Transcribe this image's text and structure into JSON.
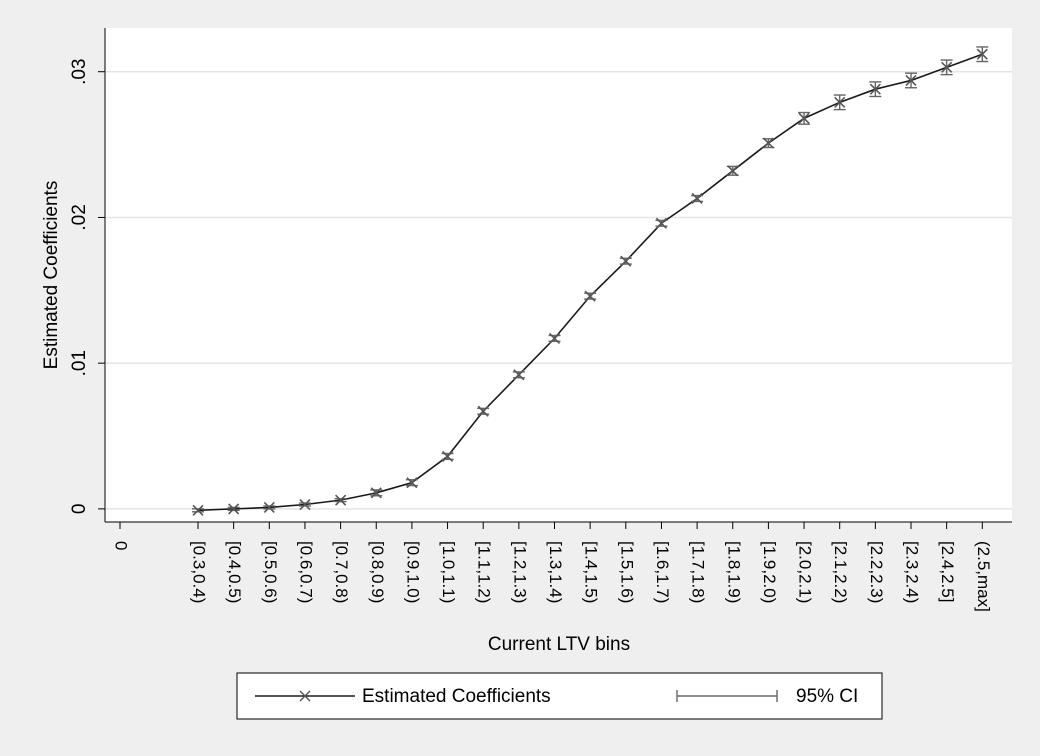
{
  "chart_data": {
    "type": "line",
    "y_label": "Estimated Coefficients",
    "x_label": "Current LTV bins",
    "categories": [
      "0",
      "[0.3,0.4)",
      "[0.4,0.5)",
      "[0.5,0.6)",
      "[0.6,0.7)",
      "[0.7,0.8)",
      "[0.8,0.9)",
      "[0.9,1.0)",
      "[1.0,1.1)",
      "[1.1,1.2)",
      "[1.2,1.3)",
      "[1.3,1.4)",
      "[1.4,1.5)",
      "[1.5,1.6)",
      "[1.6,1.7)",
      "[1.7,1.8)",
      "[1.8,1.9)",
      "[1.9,2.0)",
      "[2.0,2.1)",
      "[2.1,2.2)",
      "[2.2,2.3)",
      "[2.3,2.4)",
      "[2.4,2.5]",
      "(2.5,max]"
    ],
    "series": [
      {
        "name": "Estimated Coefficients",
        "color": "#1a1a1a",
        "marker_color": "#555555",
        "values": [
          null,
          -0.0001,
          0.0,
          0.0001,
          0.0003,
          0.0006,
          0.0011,
          0.0018,
          0.0036,
          0.0067,
          0.0092,
          0.0117,
          0.0146,
          0.017,
          0.0196,
          0.0213,
          0.0232,
          0.0251,
          0.0268,
          0.0279,
          0.0288,
          0.0294,
          0.0303,
          0.0312
        ],
        "errors": [
          null,
          0.0001,
          0.0001,
          0.0001,
          0.0001,
          0.0001,
          0.0002,
          0.0002,
          0.0002,
          0.0002,
          0.0002,
          0.0002,
          0.0002,
          0.0002,
          0.0002,
          0.0002,
          0.0003,
          0.0003,
          0.0004,
          0.0005,
          0.0005,
          0.0005,
          0.0005,
          0.0005
        ]
      }
    ],
    "ci_name": "95% CI",
    "ci_color": "#666666",
    "ylim": [
      -0.0009,
      0.033
    ],
    "yticks": [
      0,
      {
        "value": 0.01,
        "label": ".01"
      },
      {
        "value": 0.02,
        "label": ".02"
      },
      {
        "value": 0.03,
        "label": ".03"
      }
    ],
    "grid": true
  }
}
